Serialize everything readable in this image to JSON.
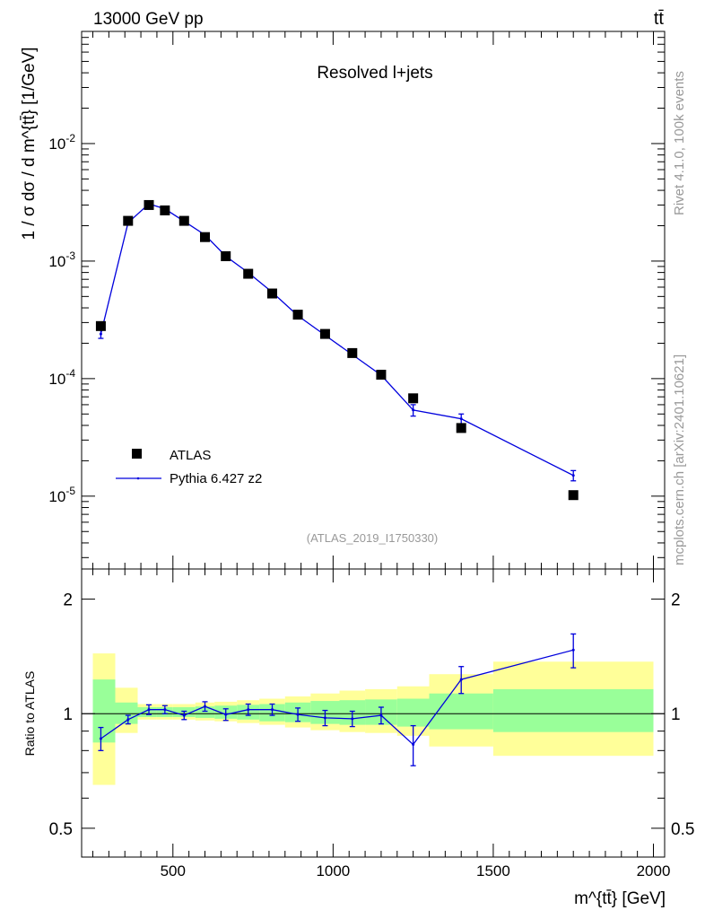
{
  "header": {
    "energy_label": "13000 GeV pp",
    "process_label": "tt̄"
  },
  "side": {
    "rivet_label": "Rivet 4.1.0,  100k events",
    "source_label": "mcplots.cern.ch [arXiv:2401.10621]"
  },
  "colors": {
    "mc_line": "#0000dd",
    "data_marker": "#000000",
    "band_inner": "#99ff99",
    "band_outer": "#ffff99"
  },
  "chart_data": [
    {
      "type": "scatter",
      "title": "Resolved l+jets",
      "analysis_id": "(ATLAS_2019_I1750330)",
      "ylabel": "1 / σ dσ / d m^{tt̄} [1/GeV]",
      "yscale": "log",
      "xlim": [
        215,
        2035
      ],
      "ylim": [
        2.4e-06,
        0.09
      ],
      "y_ticks": [
        {
          "value": 0.01,
          "label": "10^-2"
        },
        {
          "value": 0.001,
          "label": "10^-3"
        },
        {
          "value": 0.0001,
          "label": "10^-4"
        },
        {
          "value": 1e-05,
          "label": "10^-5"
        }
      ],
      "legend": {
        "position": "bottom-left",
        "entries": [
          "ATLAS",
          "Pythia 6.427 z2"
        ]
      },
      "series": [
        {
          "name": "ATLAS",
          "style": "markers",
          "x": [
            275,
            360,
            425,
            475,
            535,
            600,
            665,
            735,
            810,
            890,
            975,
            1060,
            1150,
            1250,
            1400,
            1750
          ],
          "y": [
            0.00028,
            0.0022,
            0.003,
            0.0027,
            0.0022,
            0.0016,
            0.0011,
            0.00078,
            0.00053,
            0.00035,
            0.00024,
            0.000165,
            0.000108,
            6.8e-05,
            3.8e-05,
            1.02e-05
          ]
        },
        {
          "name": "Pythia 6.427 z2",
          "style": "line",
          "x": [
            275,
            360,
            425,
            475,
            535,
            600,
            665,
            735,
            810,
            890,
            975,
            1060,
            1150,
            1250,
            1400,
            1750
          ],
          "y": [
            0.00024,
            0.00212,
            0.00307,
            0.00278,
            0.00218,
            0.00167,
            0.0011,
            0.000798,
            0.000543,
            0.000343,
            0.000234,
            0.00016,
            0.000107,
            5.4e-05,
            4.55e-05,
            1.5e-05
          ],
          "err_lo": [
            2e-05,
            8e-05,
            0.0001,
            8e-05,
            6e-05,
            5e-05,
            4e-05,
            2.5e-05,
            1.8e-05,
            1.3e-05,
            9e-06,
            7e-06,
            5e-06,
            6e-06,
            4.5e-06,
            1.5e-06
          ],
          "err_hi": [
            2e-05,
            8e-05,
            0.0001,
            8e-05,
            6e-05,
            5e-05,
            4e-05,
            2.5e-05,
            1.8e-05,
            1.3e-05,
            9e-06,
            7e-06,
            5e-06,
            6e-06,
            4.5e-06,
            1.5e-06
          ]
        }
      ]
    },
    {
      "type": "line",
      "title": "",
      "xlabel": "m^{tt̄} [GeV]",
      "ylabel": "Ratio to ATLAS",
      "xlim": [
        215,
        2035
      ],
      "ylim": [
        0.42,
        2.4
      ],
      "yscale": "log",
      "x_ticks": [
        500,
        1000,
        1500,
        2000
      ],
      "y_ticks": [
        {
          "value": 0.5,
          "label": "0.5"
        },
        {
          "value": 1,
          "label": "1"
        },
        {
          "value": 2,
          "label": "2"
        }
      ],
      "reference_line": 1,
      "bands": {
        "edges": [
          250,
          320,
          390,
          450,
          500,
          570,
          630,
          700,
          770,
          850,
          930,
          1020,
          1100,
          1200,
          1300,
          1500,
          2000
        ],
        "inner": [
          [
            0.84,
            1.23
          ],
          [
            0.94,
            1.07
          ],
          [
            0.98,
            1.04
          ],
          [
            0.98,
            1.04
          ],
          [
            0.98,
            1.04
          ],
          [
            0.975,
            1.045
          ],
          [
            0.97,
            1.05
          ],
          [
            0.965,
            1.055
          ],
          [
            0.955,
            1.06
          ],
          [
            0.95,
            1.07
          ],
          [
            0.94,
            1.08
          ],
          [
            0.935,
            1.085
          ],
          [
            0.935,
            1.09
          ],
          [
            0.925,
            1.095
          ],
          [
            0.91,
            1.13
          ],
          [
            0.895,
            1.16
          ]
        ],
        "outer": [
          [
            0.65,
            1.44
          ],
          [
            0.89,
            1.17
          ],
          [
            0.965,
            1.06
          ],
          [
            0.965,
            1.06
          ],
          [
            0.965,
            1.06
          ],
          [
            0.96,
            1.07
          ],
          [
            0.955,
            1.075
          ],
          [
            0.945,
            1.085
          ],
          [
            0.935,
            1.095
          ],
          [
            0.92,
            1.11
          ],
          [
            0.905,
            1.13
          ],
          [
            0.895,
            1.15
          ],
          [
            0.89,
            1.16
          ],
          [
            0.875,
            1.18
          ],
          [
            0.82,
            1.27
          ],
          [
            0.775,
            1.37
          ]
        ]
      },
      "series": [
        {
          "name": "Pythia 6.427 z2 / ATLAS",
          "x": [
            275,
            360,
            425,
            475,
            535,
            600,
            665,
            735,
            810,
            890,
            975,
            1060,
            1150,
            1250,
            1400,
            1750
          ],
          "y": [
            0.86,
            0.965,
            1.025,
            1.025,
            0.99,
            1.045,
            0.995,
            1.025,
            1.025,
            0.995,
            0.975,
            0.97,
            0.99,
            0.83,
            1.23,
            1.47
          ],
          "err_lo": [
            0.06,
            0.025,
            0.03,
            0.025,
            0.025,
            0.03,
            0.035,
            0.035,
            0.035,
            0.04,
            0.045,
            0.045,
            0.05,
            0.1,
            0.1,
            0.15
          ],
          "err_hi": [
            0.06,
            0.025,
            0.03,
            0.025,
            0.025,
            0.03,
            0.035,
            0.035,
            0.035,
            0.04,
            0.045,
            0.045,
            0.05,
            0.1,
            0.1,
            0.15
          ]
        }
      ]
    }
  ]
}
